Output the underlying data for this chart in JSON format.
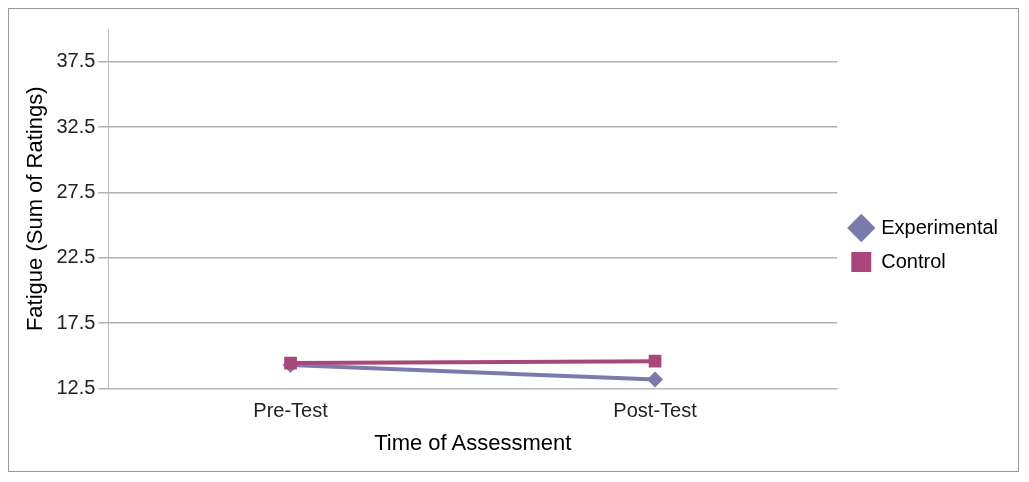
{
  "chart_data": {
    "type": "line",
    "xlabel": "Time of Assessment",
    "ylabel": "Fatigue (Sum of Ratings)",
    "categories": [
      "Pre-Test",
      "Post-Test"
    ],
    "series": [
      {
        "name": "Experimental",
        "color": "#7b7aad",
        "marker": "diamond",
        "values": [
          14.3,
          13.2
        ]
      },
      {
        "name": "Control",
        "color": "#a8487a",
        "marker": "square",
        "values": [
          14.45,
          14.6
        ]
      }
    ],
    "ylim": [
      12.5,
      40
    ],
    "yticks": [
      12.5,
      17.5,
      22.5,
      27.5,
      32.5,
      37.5
    ],
    "grid": "y",
    "legend": "right",
    "line_style": "solid"
  }
}
